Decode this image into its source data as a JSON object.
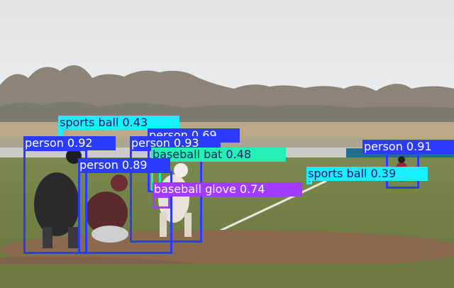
{
  "colors": {
    "person": "#2b3cff",
    "sports_ball": "#18f0ff",
    "baseball_bat": "#23f0b4",
    "baseball_glove": "#a23cff",
    "label_text_dark": "#1a1a6a",
    "label_text_light": "#ffffff"
  },
  "detections": [
    {
      "class": "sports ball",
      "confidence": "0.43",
      "label": "sports ball 0.43",
      "color_key": "sports_ball"
    },
    {
      "class": "person",
      "confidence": "0.69",
      "label": "person 0.69",
      "color_key": "person"
    },
    {
      "class": "person",
      "confidence": "0.92",
      "label": "person 0.92",
      "color_key": "person"
    },
    {
      "class": "person",
      "confidence": "0.93",
      "label": "person 0.93",
      "color_key": "person"
    },
    {
      "class": "baseball bat",
      "confidence": "0.48",
      "label": "baseball bat 0.48",
      "color_key": "baseball_bat"
    },
    {
      "class": "person",
      "confidence": "0.89",
      "label": "person 0.89",
      "color_key": "person"
    },
    {
      "class": "baseball glove",
      "confidence": "0.74",
      "label": "baseball glove 0.74",
      "color_key": "baseball_glove"
    },
    {
      "class": "person",
      "confidence": "0.91",
      "label": "person 0.91",
      "color_key": "person"
    },
    {
      "class": "sports ball",
      "confidence": "0.39",
      "label": "sports ball 0.39",
      "color_key": "sports_ball"
    }
  ]
}
